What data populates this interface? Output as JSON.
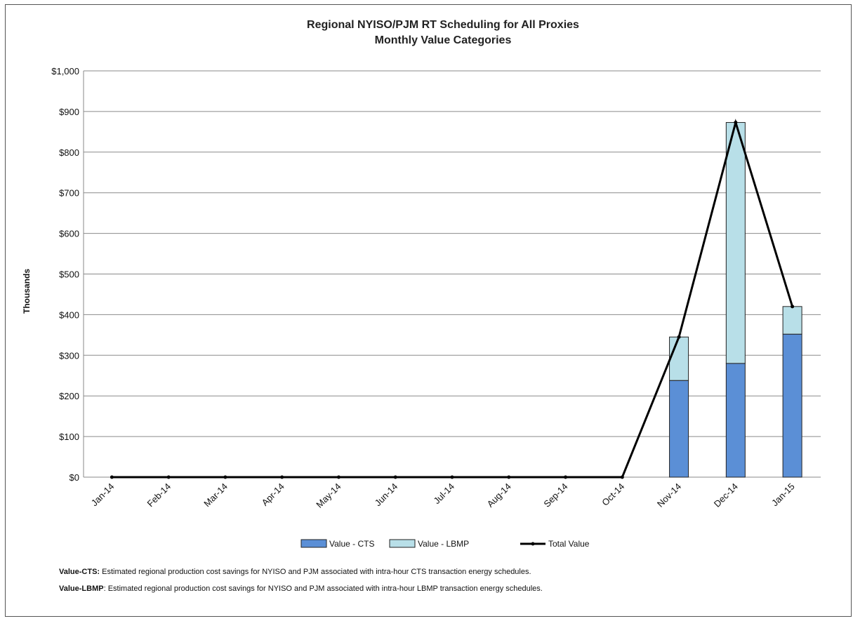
{
  "chart_data": {
    "type": "bar",
    "title": "Regional NYISO/PJM RT Scheduling for All Proxies",
    "subtitle": "Monthly Value Categories",
    "ylabel": "Thousands",
    "xlabel": "",
    "ylim": [
      0,
      1000
    ],
    "ytick_labels": [
      "$0",
      "$100",
      "$200",
      "$300",
      "$400",
      "$500",
      "$600",
      "$700",
      "$800",
      "$900",
      "$1,000"
    ],
    "categories": [
      "Jan-14",
      "Feb-14",
      "Mar-14",
      "Apr-14",
      "May-14",
      "Jun-14",
      "Jul-14",
      "Aug-14",
      "Sep-14",
      "Oct-14",
      "Nov-14",
      "Dec-14",
      "Jan-15"
    ],
    "series": [
      {
        "name": "Value - CTS",
        "kind": "bar",
        "stack": "value",
        "color": "#5b8fd6",
        "values": [
          0,
          0,
          0,
          0,
          0,
          0,
          0,
          0,
          0,
          0,
          238,
          280,
          352
        ]
      },
      {
        "name": "Value - LBMP",
        "kind": "bar",
        "stack": "value",
        "color": "#b8dfe8",
        "values": [
          0,
          0,
          0,
          0,
          0,
          0,
          0,
          0,
          0,
          0,
          107,
          593,
          68
        ]
      },
      {
        "name": "Total Value",
        "kind": "line",
        "color": "#000000",
        "values": [
          0,
          0,
          0,
          0,
          0,
          0,
          0,
          0,
          0,
          0,
          345,
          873,
          420
        ]
      }
    ],
    "grid": true,
    "legend_position": "bottom"
  },
  "notes": [
    {
      "label": "Value-CTS:",
      "text": " Estimated regional production cost savings for NYISO and PJM associated with intra-hour CTS transaction energy schedules."
    },
    {
      "label": "Value-LBMP",
      "text": ": Estimated regional production cost savings for NYISO and PJM associated with intra-hour LBMP transaction energy schedules."
    }
  ]
}
